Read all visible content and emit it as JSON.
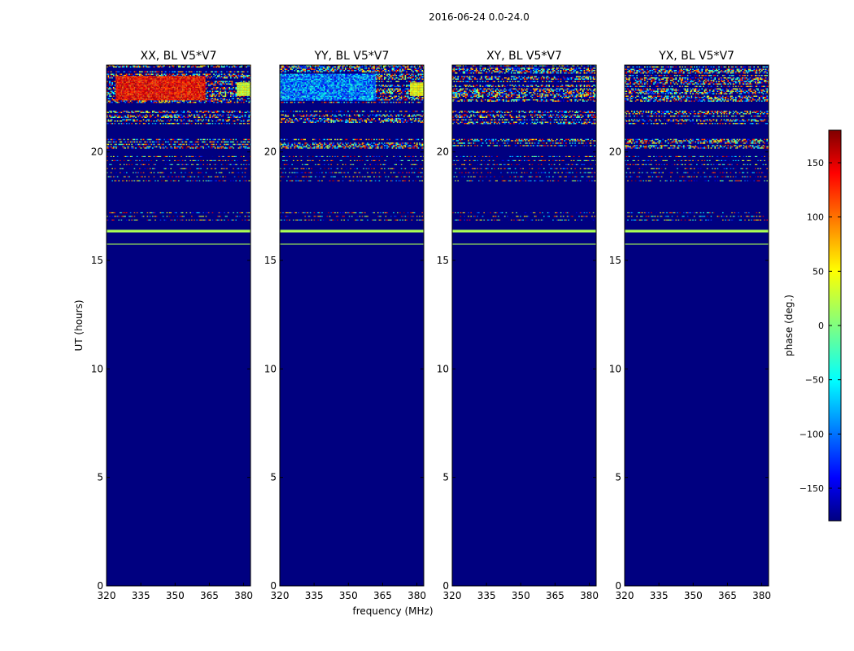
{
  "figure": {
    "title": "2016-06-24 0.0-24.0",
    "xlabel": "frequency (MHz)",
    "ylabel": "UT (hours)"
  },
  "chart_data": {
    "type": "heatmap",
    "title": "2016-06-24 0.0-24.0",
    "xlabel": "frequency (MHz)",
    "ylabel": "UT (hours)",
    "xlim": [
      320,
      383
    ],
    "ylim": [
      0,
      24
    ],
    "xticks": [
      320,
      335,
      350,
      365,
      380
    ],
    "yticks": [
      0,
      5,
      10,
      15,
      20
    ],
    "colormap": "jet",
    "background_value": -180,
    "panels": [
      {
        "title": "XX, BL V5*V7",
        "features": [
          {
            "kind": "noise",
            "t0": 22.3,
            "t1": 24.0
          },
          {
            "kind": "block",
            "t0": 22.4,
            "t1": 23.5,
            "f0": 324,
            "f1": 363,
            "center": 130,
            "spread": 35
          },
          {
            "kind": "block",
            "t0": 22.6,
            "t1": 23.2,
            "f0": 377,
            "f1": 383,
            "center": 30,
            "spread": 20
          },
          {
            "kind": "noise",
            "t0": 21.3,
            "t1": 21.9
          },
          {
            "kind": "noise",
            "t0": 20.2,
            "t1": 20.6
          },
          {
            "kind": "lines",
            "t0": 18.6,
            "t1": 19.9,
            "count": 7
          },
          {
            "kind": "lines",
            "t0": 16.8,
            "t1": 17.3,
            "count": 3
          },
          {
            "kind": "line",
            "t": 16.35,
            "value": 15,
            "width": 0.12
          },
          {
            "kind": "line",
            "t": 15.75,
            "value": 15,
            "width": 0.04
          }
        ]
      },
      {
        "title": "YY, BL V5*V7",
        "features": [
          {
            "kind": "noise",
            "t0": 22.3,
            "t1": 24.0
          },
          {
            "kind": "block",
            "t0": 22.4,
            "t1": 23.6,
            "f0": 320,
            "f1": 362,
            "center": -85,
            "spread": 55
          },
          {
            "kind": "block",
            "t0": 22.6,
            "t1": 23.2,
            "f0": 377,
            "f1": 383,
            "center": 40,
            "spread": 20
          },
          {
            "kind": "noise",
            "t0": 21.3,
            "t1": 21.9
          },
          {
            "kind": "noise",
            "t0": 20.2,
            "t1": 20.6
          },
          {
            "kind": "lines",
            "t0": 18.6,
            "t1": 19.9,
            "count": 7
          },
          {
            "kind": "lines",
            "t0": 16.8,
            "t1": 17.3,
            "count": 3
          },
          {
            "kind": "line",
            "t": 16.35,
            "value": 15,
            "width": 0.12
          },
          {
            "kind": "line",
            "t": 15.75,
            "value": 15,
            "width": 0.04
          }
        ]
      },
      {
        "title": "XY, BL V5*V7",
        "features": [
          {
            "kind": "noise",
            "t0": 22.3,
            "t1": 24.0
          },
          {
            "kind": "noise",
            "t0": 21.3,
            "t1": 21.9
          },
          {
            "kind": "noise",
            "t0": 20.2,
            "t1": 20.6
          },
          {
            "kind": "lines",
            "t0": 18.6,
            "t1": 19.9,
            "count": 7
          },
          {
            "kind": "lines",
            "t0": 16.8,
            "t1": 17.3,
            "count": 3
          },
          {
            "kind": "line",
            "t": 16.35,
            "value": 15,
            "width": 0.12
          },
          {
            "kind": "line",
            "t": 15.75,
            "value": 15,
            "width": 0.04
          }
        ]
      },
      {
        "title": "YX, BL V5*V7",
        "features": [
          {
            "kind": "noise",
            "t0": 22.3,
            "t1": 24.0
          },
          {
            "kind": "noise",
            "t0": 21.3,
            "t1": 21.9
          },
          {
            "kind": "noise",
            "t0": 20.2,
            "t1": 20.6
          },
          {
            "kind": "lines",
            "t0": 18.6,
            "t1": 19.9,
            "count": 7
          },
          {
            "kind": "lines",
            "t0": 16.8,
            "t1": 17.3,
            "count": 3
          },
          {
            "kind": "line",
            "t": 16.35,
            "value": 15,
            "width": 0.12
          },
          {
            "kind": "line",
            "t": 15.75,
            "value": 15,
            "width": 0.04
          }
        ]
      }
    ],
    "colorbar": {
      "label": "phase (deg.)",
      "range": [
        -180,
        180
      ],
      "ticks": [
        -150,
        -100,
        -50,
        0,
        50,
        100,
        150
      ],
      "tick_labels": [
        "−150",
        "−100",
        "−50",
        "0",
        "50",
        "100",
        "150"
      ]
    }
  }
}
